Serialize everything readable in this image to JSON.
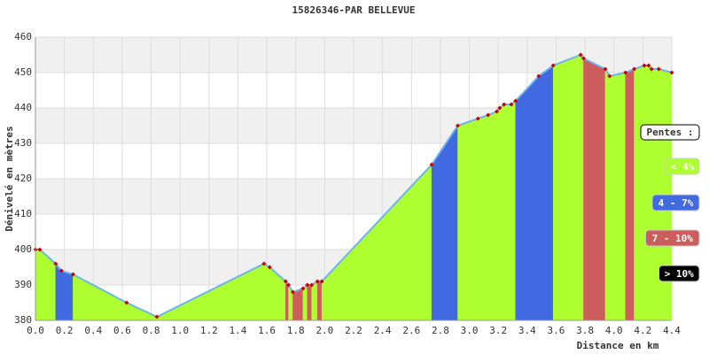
{
  "chart_data": {
    "type": "elevation-profile",
    "title": "15826346-PAR BELLEVUE",
    "xlabel": "Distance en km",
    "ylabel": "Dénivelé en mètres",
    "x": [
      0.0,
      0.03,
      0.14,
      0.18,
      0.26,
      0.63,
      0.84,
      1.58,
      1.62,
      1.73,
      1.75,
      1.78,
      1.85,
      1.88,
      1.91,
      1.95,
      1.98,
      2.74,
      2.92,
      3.06,
      3.13,
      3.19,
      3.21,
      3.24,
      3.29,
      3.32,
      3.48,
      3.58,
      3.77,
      3.79,
      3.94,
      3.97,
      4.08,
      4.14,
      4.21,
      4.24,
      4.26,
      4.31,
      4.4
    ],
    "values": [
      400,
      400,
      396,
      394,
      393,
      385,
      381,
      396,
      395,
      391,
      390,
      388,
      389,
      390,
      390,
      391,
      391,
      424,
      435,
      437,
      438,
      439,
      440,
      441,
      441,
      442,
      449,
      452,
      455,
      454,
      451,
      449,
      450,
      451,
      452,
      452,
      451,
      451,
      450
    ],
    "segment_colors": [
      "#adff2f",
      "#adff2f",
      "#4169e1",
      "#4169e1",
      "#adff2f",
      "#adff2f",
      "#adff2f",
      "#adff2f",
      "#adff2f",
      "#cd5c5c",
      "#adff2f",
      "#cd5c5c",
      "#adff2f",
      "#cd5c5c",
      "#adff2f",
      "#cd5c5c",
      "#adff2f",
      "#4169e1",
      "#adff2f",
      "#adff2f",
      "#adff2f",
      "#adff2f",
      "#adff2f",
      "#adff2f",
      "#adff2f",
      "#4169e1",
      "#4169e1",
      "#adff2f",
      "#adff2f",
      "#cd5c5c",
      "#adff2f",
      "#adff2f",
      "#cd5c5c",
      "#adff2f",
      "#adff2f",
      "#adff2f",
      "#adff2f",
      "#adff2f"
    ],
    "line_color": "#6cb4ee",
    "point_color": "#cc0000",
    "xlim": [
      0,
      4.4
    ],
    "ylim": [
      380,
      460
    ],
    "xticks": [
      {
        "value": 0,
        "label": "0.0"
      },
      0.2,
      0.4,
      0.6,
      0.8,
      {
        "value": 1,
        "label": "1.0"
      },
      1.2,
      1.4,
      1.6,
      1.8,
      {
        "value": 2,
        "label": "2.0"
      },
      2.2,
      2.4,
      2.6,
      2.8,
      {
        "value": 3,
        "label": "3.0"
      },
      3.2,
      3.4,
      3.6,
      3.8,
      {
        "value": 4,
        "label": "4.0"
      },
      4.2,
      4.4
    ],
    "yticks": [
      380,
      390,
      400,
      410,
      420,
      430,
      440,
      450,
      460
    ],
    "grid": true,
    "legend_title": "Pentes :",
    "legend": [
      {
        "label": "< 4%",
        "color": "#adff2f"
      },
      {
        "label": "4 - 7%",
        "color": "#4169e1"
      },
      {
        "label": "7 - 10%",
        "color": "#cd5c5c"
      },
      {
        "label": "> 10%",
        "color": "#000000"
      }
    ]
  }
}
